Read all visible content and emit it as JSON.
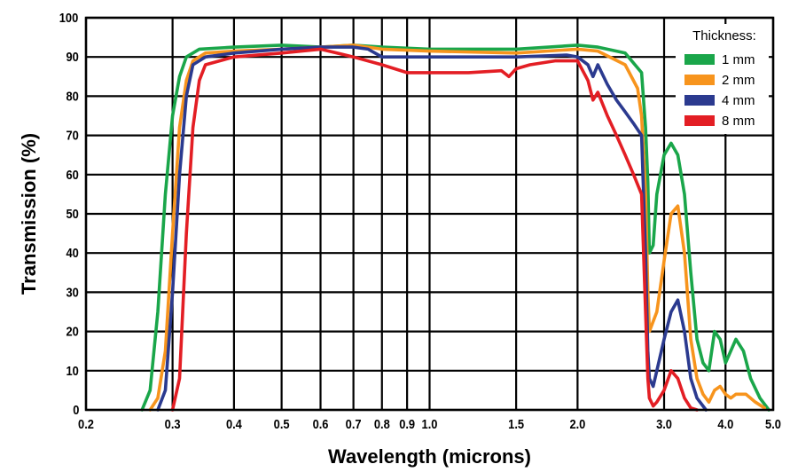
{
  "chart_data": {
    "type": "line",
    "xscale": "log",
    "xlabel": "Wavelength (microns)",
    "ylabel": "Transmission (%)",
    "xlim": [
      0.2,
      5.0
    ],
    "ylim": [
      0,
      100
    ],
    "grid": true,
    "x_ticks": [
      0.2,
      0.3,
      0.4,
      0.5,
      0.6,
      0.7,
      0.8,
      0.9,
      1.0,
      1.5,
      2.0,
      3.0,
      4.0,
      5.0
    ],
    "x_tick_labels": [
      "0.2",
      "0.3",
      "0.4",
      "0.5",
      "0.6",
      "0.7",
      "0.8",
      "0.9",
      "1.0",
      "1.5",
      "2.0",
      "3.0",
      "4.0",
      "5.0"
    ],
    "y_ticks": [
      0,
      10,
      20,
      30,
      40,
      50,
      60,
      70,
      80,
      90,
      100
    ],
    "y_tick_labels": [
      "0",
      "10",
      "20",
      "30",
      "40",
      "50",
      "60",
      "70",
      "80",
      "90",
      "100"
    ],
    "legend": {
      "title": "Thickness:",
      "position": "top-right"
    },
    "series": [
      {
        "name": "1 mm",
        "color": "#1aa64a",
        "points": [
          [
            0.26,
            0
          ],
          [
            0.27,
            5
          ],
          [
            0.28,
            25
          ],
          [
            0.29,
            55
          ],
          [
            0.3,
            75
          ],
          [
            0.31,
            85
          ],
          [
            0.32,
            90
          ],
          [
            0.34,
            92
          ],
          [
            0.4,
            92.5
          ],
          [
            0.5,
            93
          ],
          [
            0.6,
            92.5
          ],
          [
            0.7,
            93
          ],
          [
            0.8,
            92.5
          ],
          [
            1.0,
            92
          ],
          [
            1.5,
            92
          ],
          [
            2.0,
            93
          ],
          [
            2.2,
            92.5
          ],
          [
            2.5,
            91
          ],
          [
            2.7,
            86
          ],
          [
            2.75,
            72
          ],
          [
            2.78,
            58
          ],
          [
            2.8,
            40
          ],
          [
            2.85,
            42
          ],
          [
            2.9,
            55
          ],
          [
            3.0,
            65
          ],
          [
            3.1,
            68
          ],
          [
            3.2,
            65
          ],
          [
            3.3,
            55
          ],
          [
            3.4,
            35
          ],
          [
            3.5,
            18
          ],
          [
            3.6,
            12
          ],
          [
            3.7,
            10
          ],
          [
            3.8,
            20
          ],
          [
            3.9,
            18
          ],
          [
            4.0,
            12
          ],
          [
            4.2,
            18
          ],
          [
            4.35,
            15
          ],
          [
            4.5,
            8
          ],
          [
            4.7,
            3
          ],
          [
            4.9,
            0
          ]
        ]
      },
      {
        "name": "2 mm",
        "color": "#f7941d",
        "points": [
          [
            0.27,
            0
          ],
          [
            0.28,
            3
          ],
          [
            0.29,
            15
          ],
          [
            0.3,
            45
          ],
          [
            0.31,
            72
          ],
          [
            0.32,
            84
          ],
          [
            0.33,
            89
          ],
          [
            0.35,
            91
          ],
          [
            0.4,
            91.5
          ],
          [
            0.5,
            92
          ],
          [
            0.6,
            92.5
          ],
          [
            0.7,
            93
          ],
          [
            0.8,
            92
          ],
          [
            1.0,
            91.5
          ],
          [
            1.5,
            91
          ],
          [
            2.0,
            92
          ],
          [
            2.2,
            91.5
          ],
          [
            2.5,
            88
          ],
          [
            2.65,
            82
          ],
          [
            2.7,
            75
          ],
          [
            2.75,
            55
          ],
          [
            2.78,
            30
          ],
          [
            2.8,
            20
          ],
          [
            2.9,
            25
          ],
          [
            3.0,
            38
          ],
          [
            3.1,
            50
          ],
          [
            3.2,
            52
          ],
          [
            3.3,
            40
          ],
          [
            3.4,
            18
          ],
          [
            3.5,
            8
          ],
          [
            3.6,
            4
          ],
          [
            3.7,
            2
          ],
          [
            3.8,
            5
          ],
          [
            3.9,
            6
          ],
          [
            4.0,
            4
          ],
          [
            4.1,
            3
          ],
          [
            4.2,
            4
          ],
          [
            4.4,
            4
          ],
          [
            4.6,
            2
          ],
          [
            4.8,
            0.5
          ]
        ]
      },
      {
        "name": "4 mm",
        "color": "#2b3a8f",
        "points": [
          [
            0.28,
            0
          ],
          [
            0.29,
            5
          ],
          [
            0.3,
            30
          ],
          [
            0.31,
            60
          ],
          [
            0.32,
            80
          ],
          [
            0.33,
            88
          ],
          [
            0.35,
            90
          ],
          [
            0.4,
            91
          ],
          [
            0.5,
            92
          ],
          [
            0.6,
            92.5
          ],
          [
            0.7,
            92.5
          ],
          [
            0.75,
            92
          ],
          [
            0.8,
            90
          ],
          [
            1.0,
            90
          ],
          [
            1.5,
            90
          ],
          [
            1.9,
            90.5
          ],
          [
            2.0,
            90
          ],
          [
            2.1,
            88
          ],
          [
            2.15,
            85
          ],
          [
            2.2,
            88
          ],
          [
            2.3,
            83
          ],
          [
            2.4,
            79
          ],
          [
            2.5,
            76
          ],
          [
            2.6,
            73
          ],
          [
            2.7,
            70
          ],
          [
            2.75,
            40
          ],
          [
            2.78,
            15
          ],
          [
            2.8,
            8
          ],
          [
            2.85,
            6
          ],
          [
            2.9,
            10
          ],
          [
            3.0,
            18
          ],
          [
            3.1,
            25
          ],
          [
            3.2,
            28
          ],
          [
            3.3,
            20
          ],
          [
            3.4,
            8
          ],
          [
            3.5,
            3
          ],
          [
            3.6,
            1
          ],
          [
            3.65,
            0
          ]
        ]
      },
      {
        "name": "8 mm",
        "color": "#e31e24",
        "points": [
          [
            0.3,
            0
          ],
          [
            0.31,
            8
          ],
          [
            0.32,
            45
          ],
          [
            0.33,
            72
          ],
          [
            0.34,
            84
          ],
          [
            0.35,
            88
          ],
          [
            0.4,
            90
          ],
          [
            0.5,
            91
          ],
          [
            0.6,
            92
          ],
          [
            0.7,
            90
          ],
          [
            0.8,
            88
          ],
          [
            0.9,
            86
          ],
          [
            1.0,
            86
          ],
          [
            1.2,
            86
          ],
          [
            1.4,
            86.5
          ],
          [
            1.45,
            85
          ],
          [
            1.5,
            87
          ],
          [
            1.6,
            88
          ],
          [
            1.8,
            89
          ],
          [
            2.0,
            89
          ],
          [
            2.1,
            84
          ],
          [
            2.15,
            79
          ],
          [
            2.2,
            81
          ],
          [
            2.3,
            75
          ],
          [
            2.4,
            70
          ],
          [
            2.5,
            65
          ],
          [
            2.6,
            60
          ],
          [
            2.7,
            55
          ],
          [
            2.75,
            25
          ],
          [
            2.78,
            8
          ],
          [
            2.8,
            3
          ],
          [
            2.85,
            1
          ],
          [
            2.9,
            2
          ],
          [
            3.0,
            5
          ],
          [
            3.1,
            10
          ],
          [
            3.2,
            8
          ],
          [
            3.3,
            3
          ],
          [
            3.4,
            0.5
          ],
          [
            3.5,
            0
          ]
        ]
      }
    ]
  }
}
